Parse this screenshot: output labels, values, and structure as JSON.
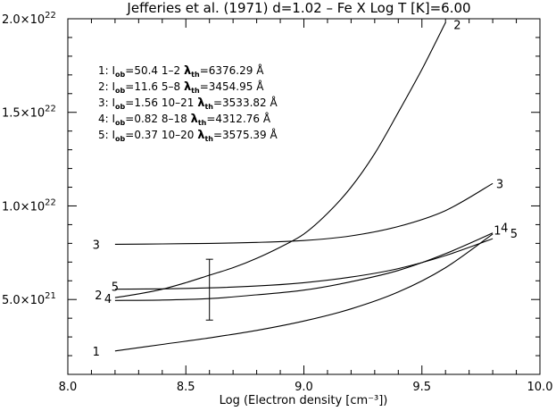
{
  "chart_data": {
    "type": "line",
    "title": "Jefferies et al. (1971) d=1.02 –  Fe X  Log T [K]=6.00",
    "xlabel": "Log (Electron density [cm⁻³])",
    "ylabel": "",
    "xlim": [
      8.0,
      10.0
    ],
    "ylim": [
      1e+21,
      2e+22
    ],
    "x_ticks": [
      8.0,
      8.5,
      9.0,
      9.5,
      10.0
    ],
    "x_tick_labels": [
      "8.0",
      "8.5",
      "9.0",
      "9.5",
      "10.0"
    ],
    "y_ticks": [
      5e+21,
      1e+22,
      1.5e+22,
      2e+22
    ],
    "y_tick_labels": [
      {
        "mant": "5.0×10",
        "exp": "21"
      },
      {
        "mant": "1.0×10",
        "exp": "22"
      },
      {
        "mant": "1.5×10",
        "exp": "22"
      },
      {
        "mant": "2.0×10",
        "exp": "22"
      }
    ],
    "grid": false,
    "series": [
      {
        "name": "1",
        "x": [
          8.2,
          8.4,
          8.6,
          8.8,
          9.0,
          9.2,
          9.4,
          9.6,
          9.8
        ],
        "y": [
          2.25e+21,
          2.6e+21,
          2.95e+21,
          3.35e+21,
          3.85e+21,
          4.5e+21,
          5.4e+21,
          6.7e+21,
          8.5e+21
        ]
      },
      {
        "name": "2",
        "x": [
          8.2,
          8.3,
          8.4,
          8.5,
          8.6,
          8.7,
          8.8,
          8.9,
          9.0,
          9.1,
          9.2,
          9.3,
          9.4,
          9.5,
          9.6
        ],
        "y": [
          5.1e+21,
          5.3e+21,
          5.55e+21,
          5.9e+21,
          6.3e+21,
          6.7e+21,
          7.2e+21,
          7.8e+21,
          8.5e+21,
          9.6e+21,
          1.1e+22,
          1.28e+22,
          1.5e+22,
          1.73e+22,
          1.98e+22
        ]
      },
      {
        "name": "3",
        "x": [
          8.2,
          8.4,
          8.6,
          8.8,
          9.0,
          9.2,
          9.4,
          9.6,
          9.8
        ],
        "y": [
          7.95e+21,
          7.97e+21,
          8e+21,
          8.05e+21,
          8.15e+21,
          8.4e+21,
          8.9e+21,
          9.75e+21,
          1.12e+22
        ]
      },
      {
        "name": "4",
        "x": [
          8.2,
          8.4,
          8.6,
          8.8,
          9.0,
          9.2,
          9.4,
          9.6,
          9.8
        ],
        "y": [
          4.95e+21,
          4.97e+21,
          5.05e+21,
          5.25e+21,
          5.5e+21,
          5.95e+21,
          6.55e+21,
          7.45e+21,
          8.55e+21
        ]
      },
      {
        "name": "5",
        "x": [
          8.2,
          8.4,
          8.6,
          8.8,
          9.0,
          9.2,
          9.4,
          9.6,
          9.8
        ],
        "y": [
          5.55e+21,
          5.57e+21,
          5.62e+21,
          5.72e+21,
          5.9e+21,
          6.2e+21,
          6.65e+21,
          7.35e+21,
          8.25e+21
        ]
      }
    ],
    "curve_labels": [
      {
        "text": "1",
        "x": 8.12,
        "y": 2.25e+21
      },
      {
        "text": "3",
        "x": 8.12,
        "y": 7.95e+21
      },
      {
        "text": "2",
        "x": 8.13,
        "y": 5.25e+21
      },
      {
        "text": "4",
        "x": 8.17,
        "y": 5.05e+21
      },
      {
        "text": "5",
        "x": 8.2,
        "y": 5.7e+21
      },
      {
        "text": "2",
        "x": 9.65,
        "y": 1.97e+22
      },
      {
        "text": "3",
        "x": 9.83,
        "y": 1.12e+22
      },
      {
        "text": "1",
        "x": 9.82,
        "y": 8.7e+21
      },
      {
        "text": "4",
        "x": 9.85,
        "y": 8.85e+21
      },
      {
        "text": "5",
        "x": 9.89,
        "y": 8.55e+21
      }
    ],
    "error_bar": {
      "x": 8.6,
      "y_low": 3.9e+21,
      "y_high": 7.15e+21
    },
    "legend": [
      {
        "id": "1:",
        "iob": "50.4",
        "trans": "1–2",
        "lam": "6376.29 Å"
      },
      {
        "id": "2:",
        "iob": "11.6",
        "trans": "5–8",
        "lam": "3454.95 Å"
      },
      {
        "id": "3:",
        "iob": "1.56",
        "trans": "10–21",
        "lam": "3533.82 Å"
      },
      {
        "id": "4:",
        "iob": "0.82",
        "trans": "8–18",
        "lam": "4312.76 Å"
      },
      {
        "id": "5:",
        "iob": "0.37",
        "trans": "10–20",
        "lam": "3575.39 Å"
      }
    ],
    "legend_labels": {
      "iob_prefix": "I",
      "iob_sub": "ob",
      "lam_symbol": "λ",
      "lam_sub": "th"
    }
  }
}
